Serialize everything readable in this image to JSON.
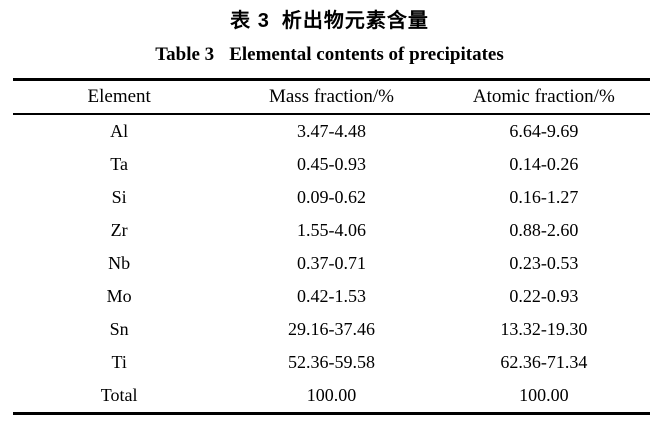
{
  "page": {
    "title_zh_label": "表 3",
    "title_zh_text": "析出物元素含量",
    "caption_label": "Table 3",
    "caption_text": "Elemental contents of precipitates"
  },
  "table": {
    "columns": [
      "Element",
      "Mass fraction/%",
      "Atomic fraction/%"
    ],
    "rows": [
      {
        "element": "Al",
        "mass": "3.47-4.48",
        "atomic": "6.64-9.69"
      },
      {
        "element": "Ta",
        "mass": "0.45-0.93",
        "atomic": "0.14-0.26"
      },
      {
        "element": "Si",
        "mass": "0.09-0.62",
        "atomic": "0.16-1.27"
      },
      {
        "element": "Zr",
        "mass": "1.55-4.06",
        "atomic": "0.88-2.60"
      },
      {
        "element": "Nb",
        "mass": "0.37-0.71",
        "atomic": "0.23-0.53"
      },
      {
        "element": "Mo",
        "mass": "0.42-1.53",
        "atomic": "0.22-0.93"
      },
      {
        "element": "Sn",
        "mass": "29.16-37.46",
        "atomic": "13.32-19.30"
      },
      {
        "element": "Ti",
        "mass": "52.36-59.58",
        "atomic": "62.36-71.34"
      },
      {
        "element": "Total",
        "mass": "100.00",
        "atomic": "100.00"
      }
    ]
  },
  "colors": {
    "text": "#000000",
    "background": "#ffffff",
    "rule": "#000000"
  }
}
